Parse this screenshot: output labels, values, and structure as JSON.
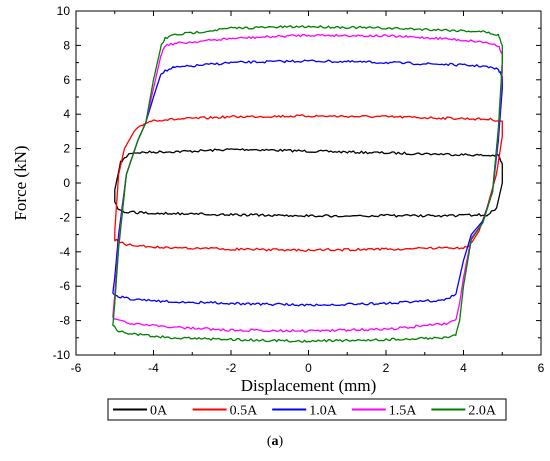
{
  "chart_data": {
    "type": "line",
    "title": "",
    "xlabel": "Displacement  (mm)",
    "ylabel": "Force (kN)",
    "xlim": [
      -6,
      6
    ],
    "ylim": [
      -10,
      10
    ],
    "xticks": [
      -6,
      -4,
      -2,
      0,
      2,
      4,
      6
    ],
    "yticks": [
      -10,
      -8,
      -6,
      -4,
      -2,
      0,
      2,
      4,
      6,
      8,
      10
    ],
    "grid": false,
    "legend_position": "bottom-outside",
    "series": [
      {
        "name": "0A",
        "color": "#000000",
        "x": [
          -5.0,
          -4.85,
          -4.6,
          -4.0,
          -3.0,
          -2.0,
          -1.5,
          0.0,
          1.0,
          2.0,
          3.0,
          4.0,
          4.6,
          4.9,
          5.0,
          5.0,
          4.85,
          4.6,
          4.3,
          4.0,
          3.0,
          2.0,
          0.0,
          -2.0,
          -3.0,
          -4.0,
          -4.6,
          -4.9,
          -5.0,
          -5.0
        ],
        "y": [
          -0.4,
          1.2,
          1.75,
          1.8,
          1.85,
          1.95,
          1.95,
          1.85,
          1.8,
          1.75,
          1.7,
          1.65,
          1.6,
          1.6,
          1.1,
          0.0,
          -1.5,
          -1.85,
          -1.85,
          -1.9,
          -1.9,
          -1.9,
          -1.9,
          -1.85,
          -1.8,
          -1.75,
          -1.7,
          -1.6,
          -1.1,
          -0.4
        ]
      },
      {
        "name": "0.5A",
        "color": "#ff0000",
        "x": [
          -5.0,
          -4.9,
          -4.75,
          -4.5,
          -4.2,
          -4.0,
          -3.0,
          -2.0,
          0.0,
          2.0,
          3.0,
          4.0,
          4.7,
          5.0,
          5.0,
          4.85,
          4.6,
          4.4,
          4.2,
          4.1,
          3.0,
          2.0,
          0.0,
          -2.0,
          -3.0,
          -4.0,
          -4.7,
          -5.0,
          -5.0
        ],
        "y": [
          -2.8,
          0.5,
          2.0,
          3.0,
          3.5,
          3.65,
          3.75,
          3.85,
          3.9,
          3.85,
          3.8,
          3.75,
          3.7,
          3.6,
          2.7,
          0.5,
          -1.5,
          -2.8,
          -3.5,
          -3.75,
          -3.8,
          -3.85,
          -3.9,
          -3.85,
          -3.8,
          -3.7,
          -3.6,
          -3.3,
          -2.8
        ]
      },
      {
        "name": "1.0A",
        "color": "#0000ff",
        "x": [
          -5.05,
          -5.0,
          -4.9,
          -4.7,
          -4.4,
          -4.2,
          -4.0,
          -3.8,
          -3.5,
          -2.0,
          0.0,
          2.0,
          3.5,
          4.5,
          4.9,
          5.0,
          5.0,
          4.9,
          4.75,
          4.5,
          4.2,
          4.0,
          3.8,
          3.5,
          2.0,
          0.0,
          -2.0,
          -3.5,
          -4.5,
          -4.9,
          -5.05
        ],
        "y": [
          -6.4,
          -5.5,
          -3.0,
          0.5,
          2.5,
          3.5,
          5.0,
          6.4,
          6.7,
          7.0,
          7.1,
          7.0,
          6.9,
          6.8,
          6.6,
          6.2,
          5.5,
          2.5,
          -0.5,
          -2.2,
          -3.0,
          -4.5,
          -6.5,
          -6.8,
          -7.0,
          -7.1,
          -7.0,
          -6.9,
          -6.8,
          -6.6,
          -6.4
        ]
      },
      {
        "name": "1.5A",
        "color": "#ff00ff",
        "x": [
          -5.05,
          -5.0,
          -4.9,
          -4.7,
          -4.4,
          -4.2,
          -4.0,
          -3.8,
          -3.7,
          -3.5,
          -2.0,
          0.0,
          2.0,
          3.5,
          4.5,
          4.9,
          5.0,
          5.0,
          4.9,
          4.75,
          4.5,
          4.2,
          4.0,
          3.9,
          3.8,
          3.5,
          2.0,
          0.0,
          -2.0,
          -3.5,
          -4.5,
          -4.9,
          -5.05
        ],
        "y": [
          -7.8,
          -6.5,
          -3.5,
          0.5,
          2.5,
          3.5,
          5.5,
          7.5,
          8.0,
          8.1,
          8.4,
          8.6,
          8.55,
          8.4,
          8.2,
          8.0,
          7.5,
          6.5,
          3.0,
          -0.5,
          -2.3,
          -3.2,
          -5.5,
          -7.0,
          -8.0,
          -8.2,
          -8.5,
          -8.6,
          -8.55,
          -8.4,
          -8.2,
          -8.0,
          -7.8
        ]
      },
      {
        "name": "2.0A",
        "color": "#008000",
        "x": [
          -5.05,
          -5.0,
          -4.9,
          -4.7,
          -4.4,
          -4.2,
          -4.0,
          -3.8,
          -3.7,
          -3.5,
          -2.0,
          0.0,
          2.0,
          3.5,
          4.5,
          4.9,
          5.0,
          5.0,
          4.9,
          4.75,
          4.5,
          4.2,
          4.0,
          3.9,
          3.8,
          3.5,
          2.0,
          0.0,
          -2.0,
          -3.5,
          -4.5,
          -4.9,
          -5.05
        ],
        "y": [
          -8.3,
          -7.0,
          -3.8,
          0.5,
          2.5,
          3.5,
          6.0,
          8.0,
          8.4,
          8.6,
          9.0,
          9.1,
          9.0,
          8.9,
          8.8,
          8.6,
          8.0,
          7.0,
          3.2,
          -0.5,
          -2.3,
          -3.3,
          -6.0,
          -8.0,
          -8.8,
          -9.0,
          -9.1,
          -9.2,
          -9.1,
          -9.0,
          -8.8,
          -8.6,
          -8.3
        ]
      }
    ]
  },
  "caption": {
    "open": "(",
    "label": "a",
    "close": ")"
  }
}
